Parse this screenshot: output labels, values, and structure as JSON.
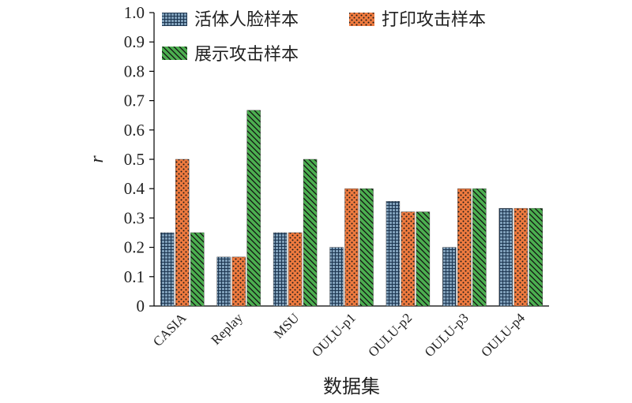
{
  "chart_data": {
    "type": "bar",
    "xlabel": "数据集",
    "ylabel": "r",
    "ylim": [
      0,
      1.0
    ],
    "yticks": [
      "0",
      "0.1",
      "0.2",
      "0.3",
      "0.4",
      "0.5",
      "0.6",
      "0.7",
      "0.8",
      "0.9",
      "1.0"
    ],
    "grid": false,
    "legend_position": "top",
    "categories": [
      "CASIA",
      "Replay",
      "MSU",
      "OULU-p1",
      "OULU-p2",
      "OULU-p3",
      "OULU-p4"
    ],
    "series": [
      {
        "name": "活体人脸样本",
        "color": "#7f9fb9",
        "pattern": "grid",
        "values": [
          0.25,
          0.167,
          0.25,
          0.2,
          0.357,
          0.2,
          0.333
        ]
      },
      {
        "name": "打印攻击样本",
        "color": "#f07b3f",
        "pattern": "dots",
        "values": [
          0.5,
          0.167,
          0.25,
          0.4,
          0.321,
          0.4,
          0.333
        ]
      },
      {
        "name": "展示攻击样本",
        "color": "#4caf50",
        "pattern": "diagonal",
        "values": [
          0.25,
          0.667,
          0.5,
          0.4,
          0.321,
          0.4,
          0.333
        ]
      }
    ]
  }
}
